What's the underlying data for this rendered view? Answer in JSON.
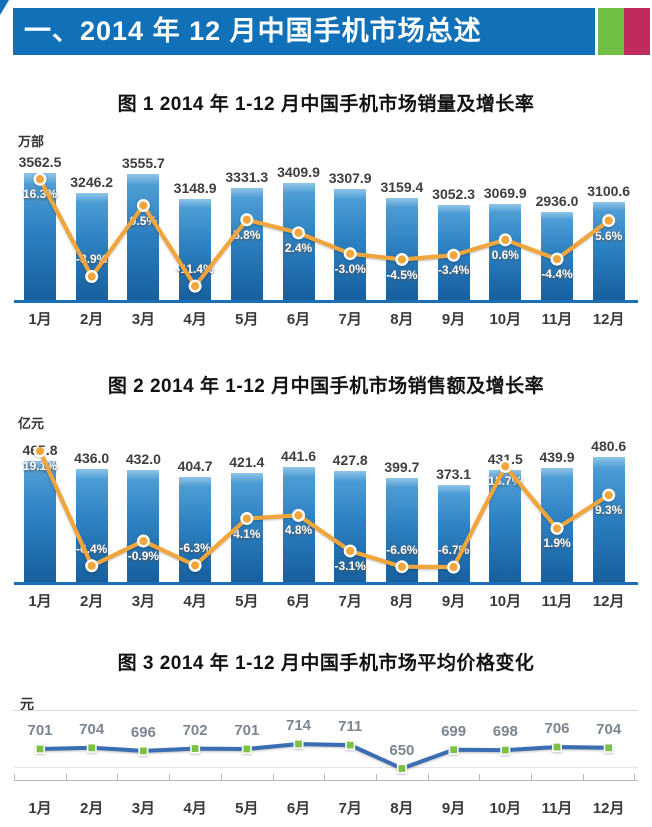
{
  "header": {
    "section_title": "一、2014 年 12 月中国手机市场总述",
    "colors": {
      "bar_blue": "#1070b8",
      "accent_green": "#6fbf44",
      "accent_red": "#bf2c5c"
    }
  },
  "chart_data": [
    {
      "type": "bar",
      "title": "图 1  2014 年 1-12 月中国手机市场销量及增长率",
      "unit": "万部",
      "categories": [
        "1月",
        "2月",
        "3月",
        "4月",
        "5月",
        "6月",
        "7月",
        "8月",
        "9月",
        "10月",
        "11月",
        "12月"
      ],
      "series": [
        {
          "name": "销量",
          "type": "bar",
          "values": [
            "3562.5",
            "3246.2",
            "3555.7",
            "3148.9",
            "3331.3",
            "3409.9",
            "3307.9",
            "3159.4",
            "3052.3",
            "3069.9",
            "2936.0",
            "3100.6"
          ]
        },
        {
          "name": "增长率",
          "type": "line",
          "values": [
            16.3,
            -8.9,
            9.5,
            -11.4,
            5.8,
            2.4,
            -3.0,
            -4.5,
            -3.4,
            0.6,
            -4.4,
            5.6
          ],
          "labels": [
            "16.3%",
            "-8.9%",
            "9.5%",
            "-11.4%",
            "5.8%",
            "2.4%",
            "-3.0%",
            "-4.5%",
            "-3.4%",
            "0.6%",
            "-4.4%",
            "5.6%"
          ]
        }
      ],
      "ylim": [
        1500,
        3700
      ],
      "ylim2": [
        -15,
        20
      ],
      "grid": "off",
      "legend": "none",
      "pct_label_side": [
        "below",
        "above",
        "below",
        "above",
        "below",
        "below",
        "below",
        "below",
        "below",
        "below",
        "below",
        "below"
      ],
      "colors": {
        "bar_cap": "#8fc5e8",
        "bar_top": "#4d9cd4",
        "bar_mid": "#2e82c2",
        "bar_bottom": "#175f9e",
        "line": "#f0a63c",
        "axis": "#1b6fb6"
      }
    },
    {
      "type": "bar",
      "title": "图 2  2014 年 1-12 月中国手机市场销售额及增长率",
      "unit": "亿元",
      "categories": [
        "1月",
        "2月",
        "3月",
        "4月",
        "5月",
        "6月",
        "7月",
        "8月",
        "9月",
        "10月",
        "11月",
        "12月"
      ],
      "series": [
        {
          "name": "销售额",
          "type": "bar",
          "values": [
            "465.8",
            "436.0",
            "432.0",
            "404.7",
            "421.4",
            "441.6",
            "427.8",
            "399.7",
            "373.1",
            "431.5",
            "439.9",
            "480.6"
          ]
        },
        {
          "name": "增长率",
          "type": "line",
          "values": [
            19.1,
            -6.4,
            -0.9,
            -6.3,
            4.1,
            4.8,
            -3.1,
            -6.6,
            -6.7,
            15.7,
            1.9,
            9.3
          ],
          "labels": [
            "19.1%",
            "-6.4%",
            "-0.9%",
            "-6.3%",
            "4.1%",
            "4.8%",
            "-3.1%",
            "-6.6%",
            "-6.7%",
            "15.7%",
            "1.9%",
            "9.3%"
          ]
        }
      ],
      "ylim": [
        0,
        520
      ],
      "ylim2": [
        -10,
        20
      ],
      "grid": "off",
      "legend": "none",
      "pct_label_side": [
        "below",
        "above",
        "below",
        "above",
        "below",
        "below",
        "below",
        "above",
        "above",
        "below",
        "below",
        "below"
      ],
      "colors": {
        "bar_cap": "#8fc5e8",
        "bar_top": "#4d9cd4",
        "bar_mid": "#2e82c2",
        "bar_bottom": "#175f9e",
        "line": "#f0a63c",
        "axis": "#1b6fb6"
      }
    },
    {
      "type": "line",
      "title": "图 3  2014 年 1-12 月中国手机市场平均价格变化",
      "unit": "元",
      "categories": [
        "1月",
        "2月",
        "3月",
        "4月",
        "5月",
        "6月",
        "7月",
        "8月",
        "9月",
        "10月",
        "11月",
        "12月"
      ],
      "values": [
        701,
        704,
        696,
        702,
        701,
        714,
        711,
        650,
        699,
        698,
        706,
        704
      ],
      "ylim": [
        620,
        800
      ],
      "grid": "on",
      "legend": "none",
      "colors": {
        "line": "#3a6db4",
        "marker": "#7cc143",
        "labels": "#7b8590",
        "axis": "#b7b7b7"
      }
    }
  ]
}
